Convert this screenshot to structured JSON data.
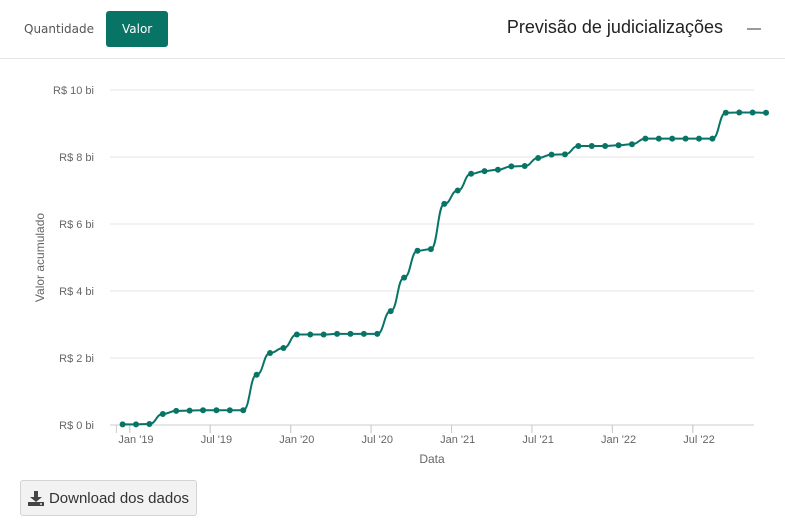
{
  "tabs": {
    "quantidade": "Quantidade",
    "valor": "Valor"
  },
  "title": "Previsão de judicializações",
  "download_label": "Download dos dados",
  "colors": {
    "accent": "#087466",
    "line": "#087466",
    "grid": "#e6e6e6",
    "axis_text": "#666666"
  },
  "chart_data": {
    "type": "line",
    "xlabel": "Data",
    "ylabel": "Valor acumulado",
    "ylim": [
      0,
      10
    ],
    "yticks": [
      0,
      2,
      4,
      6,
      8,
      10
    ],
    "ytick_labels": [
      "R$ 0 bi",
      "R$ 2 bi",
      "R$ 4 bi",
      "R$ 6 bi",
      "R$ 8 bi",
      "R$ 10 bi"
    ],
    "xticks": [
      "Jan '19",
      "Jul '19",
      "Jan '20",
      "Jul '20",
      "Jan '21",
      "Jul '21",
      "Jan '22",
      "Jul '22"
    ],
    "x_range": [
      "2018-12",
      "2022-12"
    ],
    "grid": true,
    "legend": false,
    "series": [
      {
        "x": [
          "2018-12",
          "2019-01",
          "2019-02",
          "2019-03",
          "2019-04",
          "2019-05",
          "2019-06",
          "2019-07",
          "2019-08",
          "2019-09",
          "2019-10",
          "2019-11",
          "2019-12",
          "2020-01",
          "2020-02",
          "2020-03",
          "2020-04",
          "2020-05",
          "2020-06",
          "2020-07",
          "2020-08",
          "2020-09",
          "2020-10",
          "2020-11",
          "2020-12",
          "2021-01",
          "2021-02",
          "2021-03",
          "2021-04",
          "2021-05",
          "2021-06",
          "2021-07",
          "2021-08",
          "2021-09",
          "2021-10",
          "2021-11",
          "2021-12",
          "2022-01",
          "2022-02",
          "2022-03",
          "2022-04",
          "2022-05",
          "2022-06",
          "2022-07",
          "2022-08",
          "2022-09",
          "2022-10",
          "2022-11",
          "2022-12"
        ],
        "values": [
          0.02,
          0.02,
          0.03,
          0.33,
          0.42,
          0.43,
          0.44,
          0.44,
          0.44,
          0.44,
          1.5,
          2.15,
          2.3,
          2.7,
          2.7,
          2.7,
          2.72,
          2.72,
          2.72,
          2.72,
          3.4,
          4.4,
          5.2,
          5.25,
          6.6,
          7.0,
          7.5,
          7.58,
          7.62,
          7.72,
          7.73,
          7.97,
          8.07,
          8.08,
          8.33,
          8.33,
          8.33,
          8.35,
          8.38,
          8.55,
          8.55,
          8.55,
          8.55,
          8.55,
          8.55,
          9.32,
          9.33,
          9.33,
          9.32
        ]
      }
    ]
  }
}
